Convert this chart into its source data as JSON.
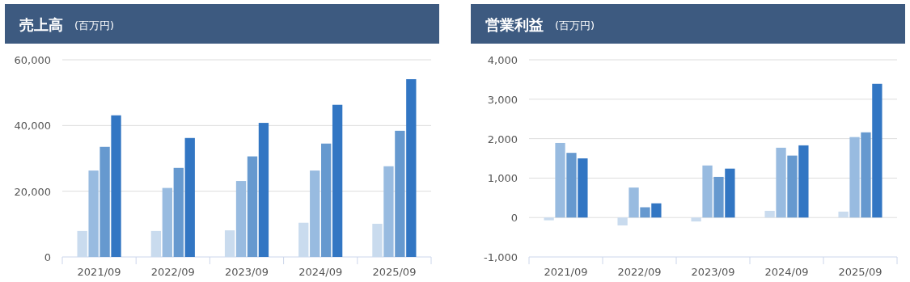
{
  "chart_data": [
    {
      "type": "bar",
      "title": "売上高",
      "subtitle": "(百万円)",
      "categories": [
        "2021/09",
        "2022/09",
        "2023/09",
        "2024/09",
        "2025/09"
      ],
      "series": [
        {
          "color": "#c9dbee",
          "values": [
            7900,
            7900,
            8100,
            10400,
            10100
          ]
        },
        {
          "color": "#98bbe0",
          "values": [
            26300,
            21000,
            23100,
            26300,
            27600
          ]
        },
        {
          "color": "#6699cf",
          "values": [
            33500,
            27100,
            30600,
            34500,
            38400
          ]
        },
        {
          "color": "#3276c3",
          "values": [
            43100,
            36200,
            40800,
            46300,
            54100
          ]
        }
      ],
      "ylim": [
        0,
        60000
      ],
      "yticks": [
        {
          "value": 0,
          "label": "0"
        },
        {
          "value": 20000,
          "label": "20,000"
        },
        {
          "value": 40000,
          "label": "40,000"
        },
        {
          "value": 60000,
          "label": "60,000"
        }
      ],
      "grid": "y"
    },
    {
      "type": "bar",
      "title": "営業利益",
      "subtitle": "(百万円)",
      "categories": [
        "2021/09",
        "2022/09",
        "2023/09",
        "2024/09",
        "2025/09"
      ],
      "series": [
        {
          "color": "#c9dbee",
          "values": [
            -70,
            -200,
            -100,
            170,
            150
          ]
        },
        {
          "color": "#98bbe0",
          "values": [
            1890,
            760,
            1320,
            1770,
            2040
          ]
        },
        {
          "color": "#6699cf",
          "values": [
            1640,
            260,
            1030,
            1570,
            2160
          ]
        },
        {
          "color": "#3276c3",
          "values": [
            1500,
            360,
            1240,
            1830,
            3390
          ]
        }
      ],
      "ylim": [
        -1000,
        4000
      ],
      "yticks": [
        {
          "value": -1000,
          "label": "-1,000"
        },
        {
          "value": 0,
          "label": "0"
        },
        {
          "value": 1000,
          "label": "1,000"
        },
        {
          "value": 2000,
          "label": "2,000"
        },
        {
          "value": 3000,
          "label": "3,000"
        },
        {
          "value": 4000,
          "label": "4,000"
        }
      ],
      "grid": "y"
    }
  ]
}
